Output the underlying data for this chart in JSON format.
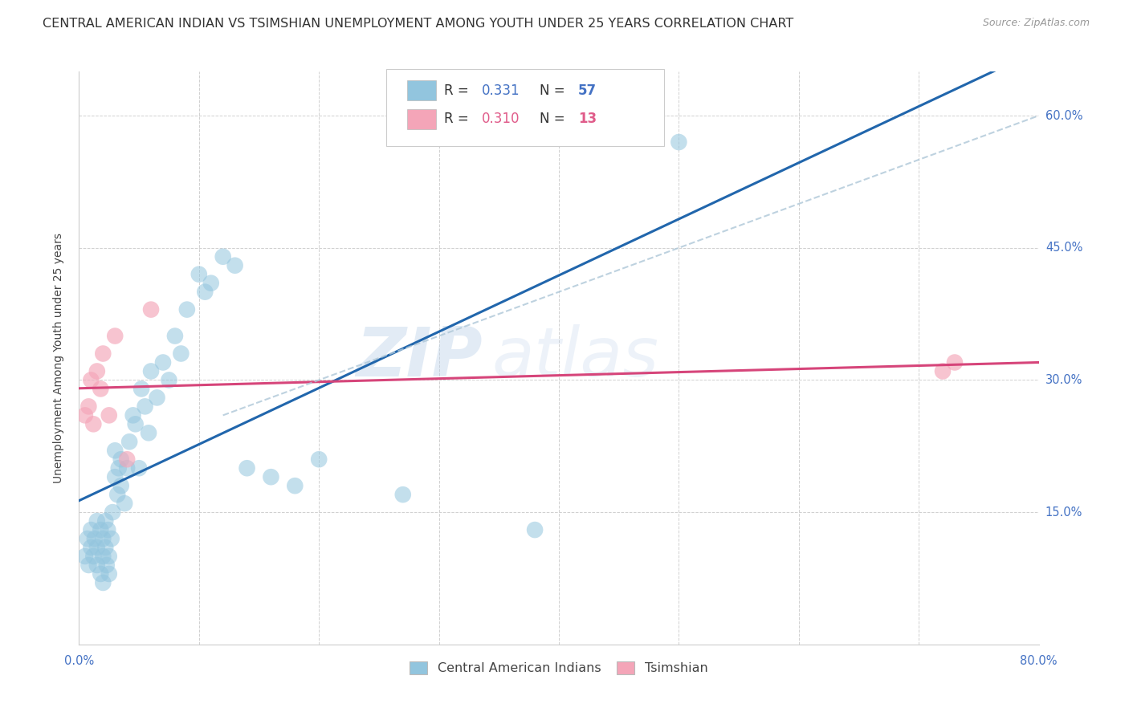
{
  "title": "CENTRAL AMERICAN INDIAN VS TSIMSHIAN UNEMPLOYMENT AMONG YOUTH UNDER 25 YEARS CORRELATION CHART",
  "source": "Source: ZipAtlas.com",
  "ylabel": "Unemployment Among Youth under 25 years",
  "xlim": [
    0.0,
    0.8
  ],
  "ylim": [
    0.0,
    0.65
  ],
  "x_ticks": [
    0.0,
    0.1,
    0.2,
    0.3,
    0.4,
    0.5,
    0.6,
    0.7,
    0.8
  ],
  "y_ticks": [
    0.0,
    0.15,
    0.3,
    0.45,
    0.6
  ],
  "watermark_zip": "ZIP",
  "watermark_atlas": "atlas",
  "blue_color": "#92c5de",
  "pink_color": "#f4a5b8",
  "blue_line_color": "#2166ac",
  "pink_line_color": "#d6457a",
  "dashed_line_color": "#aec7d8",
  "R_blue": 0.331,
  "N_blue": 57,
  "R_pink": 0.31,
  "N_pink": 13,
  "blue_points_x": [
    0.005,
    0.007,
    0.008,
    0.01,
    0.01,
    0.012,
    0.013,
    0.015,
    0.015,
    0.015,
    0.018,
    0.018,
    0.02,
    0.02,
    0.02,
    0.022,
    0.022,
    0.023,
    0.024,
    0.025,
    0.025,
    0.027,
    0.028,
    0.03,
    0.03,
    0.032,
    0.033,
    0.035,
    0.035,
    0.038,
    0.04,
    0.042,
    0.045,
    0.047,
    0.05,
    0.052,
    0.055,
    0.058,
    0.06,
    0.065,
    0.07,
    0.075,
    0.08,
    0.085,
    0.09,
    0.1,
    0.105,
    0.11,
    0.12,
    0.13,
    0.14,
    0.16,
    0.18,
    0.2,
    0.27,
    0.38,
    0.5
  ],
  "blue_points_y": [
    0.1,
    0.12,
    0.09,
    0.11,
    0.13,
    0.1,
    0.12,
    0.14,
    0.11,
    0.09,
    0.13,
    0.08,
    0.12,
    0.1,
    0.07,
    0.11,
    0.14,
    0.09,
    0.13,
    0.1,
    0.08,
    0.12,
    0.15,
    0.22,
    0.19,
    0.17,
    0.2,
    0.18,
    0.21,
    0.16,
    0.2,
    0.23,
    0.26,
    0.25,
    0.2,
    0.29,
    0.27,
    0.24,
    0.31,
    0.28,
    0.32,
    0.3,
    0.35,
    0.33,
    0.38,
    0.42,
    0.4,
    0.41,
    0.44,
    0.43,
    0.2,
    0.19,
    0.18,
    0.21,
    0.17,
    0.13,
    0.57
  ],
  "pink_points_x": [
    0.005,
    0.008,
    0.01,
    0.012,
    0.015,
    0.018,
    0.02,
    0.025,
    0.03,
    0.04,
    0.06,
    0.72,
    0.73
  ],
  "pink_points_y": [
    0.26,
    0.27,
    0.3,
    0.25,
    0.31,
    0.29,
    0.33,
    0.26,
    0.35,
    0.21,
    0.38,
    0.31,
    0.32
  ],
  "background_color": "#ffffff",
  "grid_color": "#d0d0d0",
  "title_fontsize": 11.5,
  "axis_label_fontsize": 10,
  "tick_fontsize": 10.5,
  "legend_fontsize": 12
}
